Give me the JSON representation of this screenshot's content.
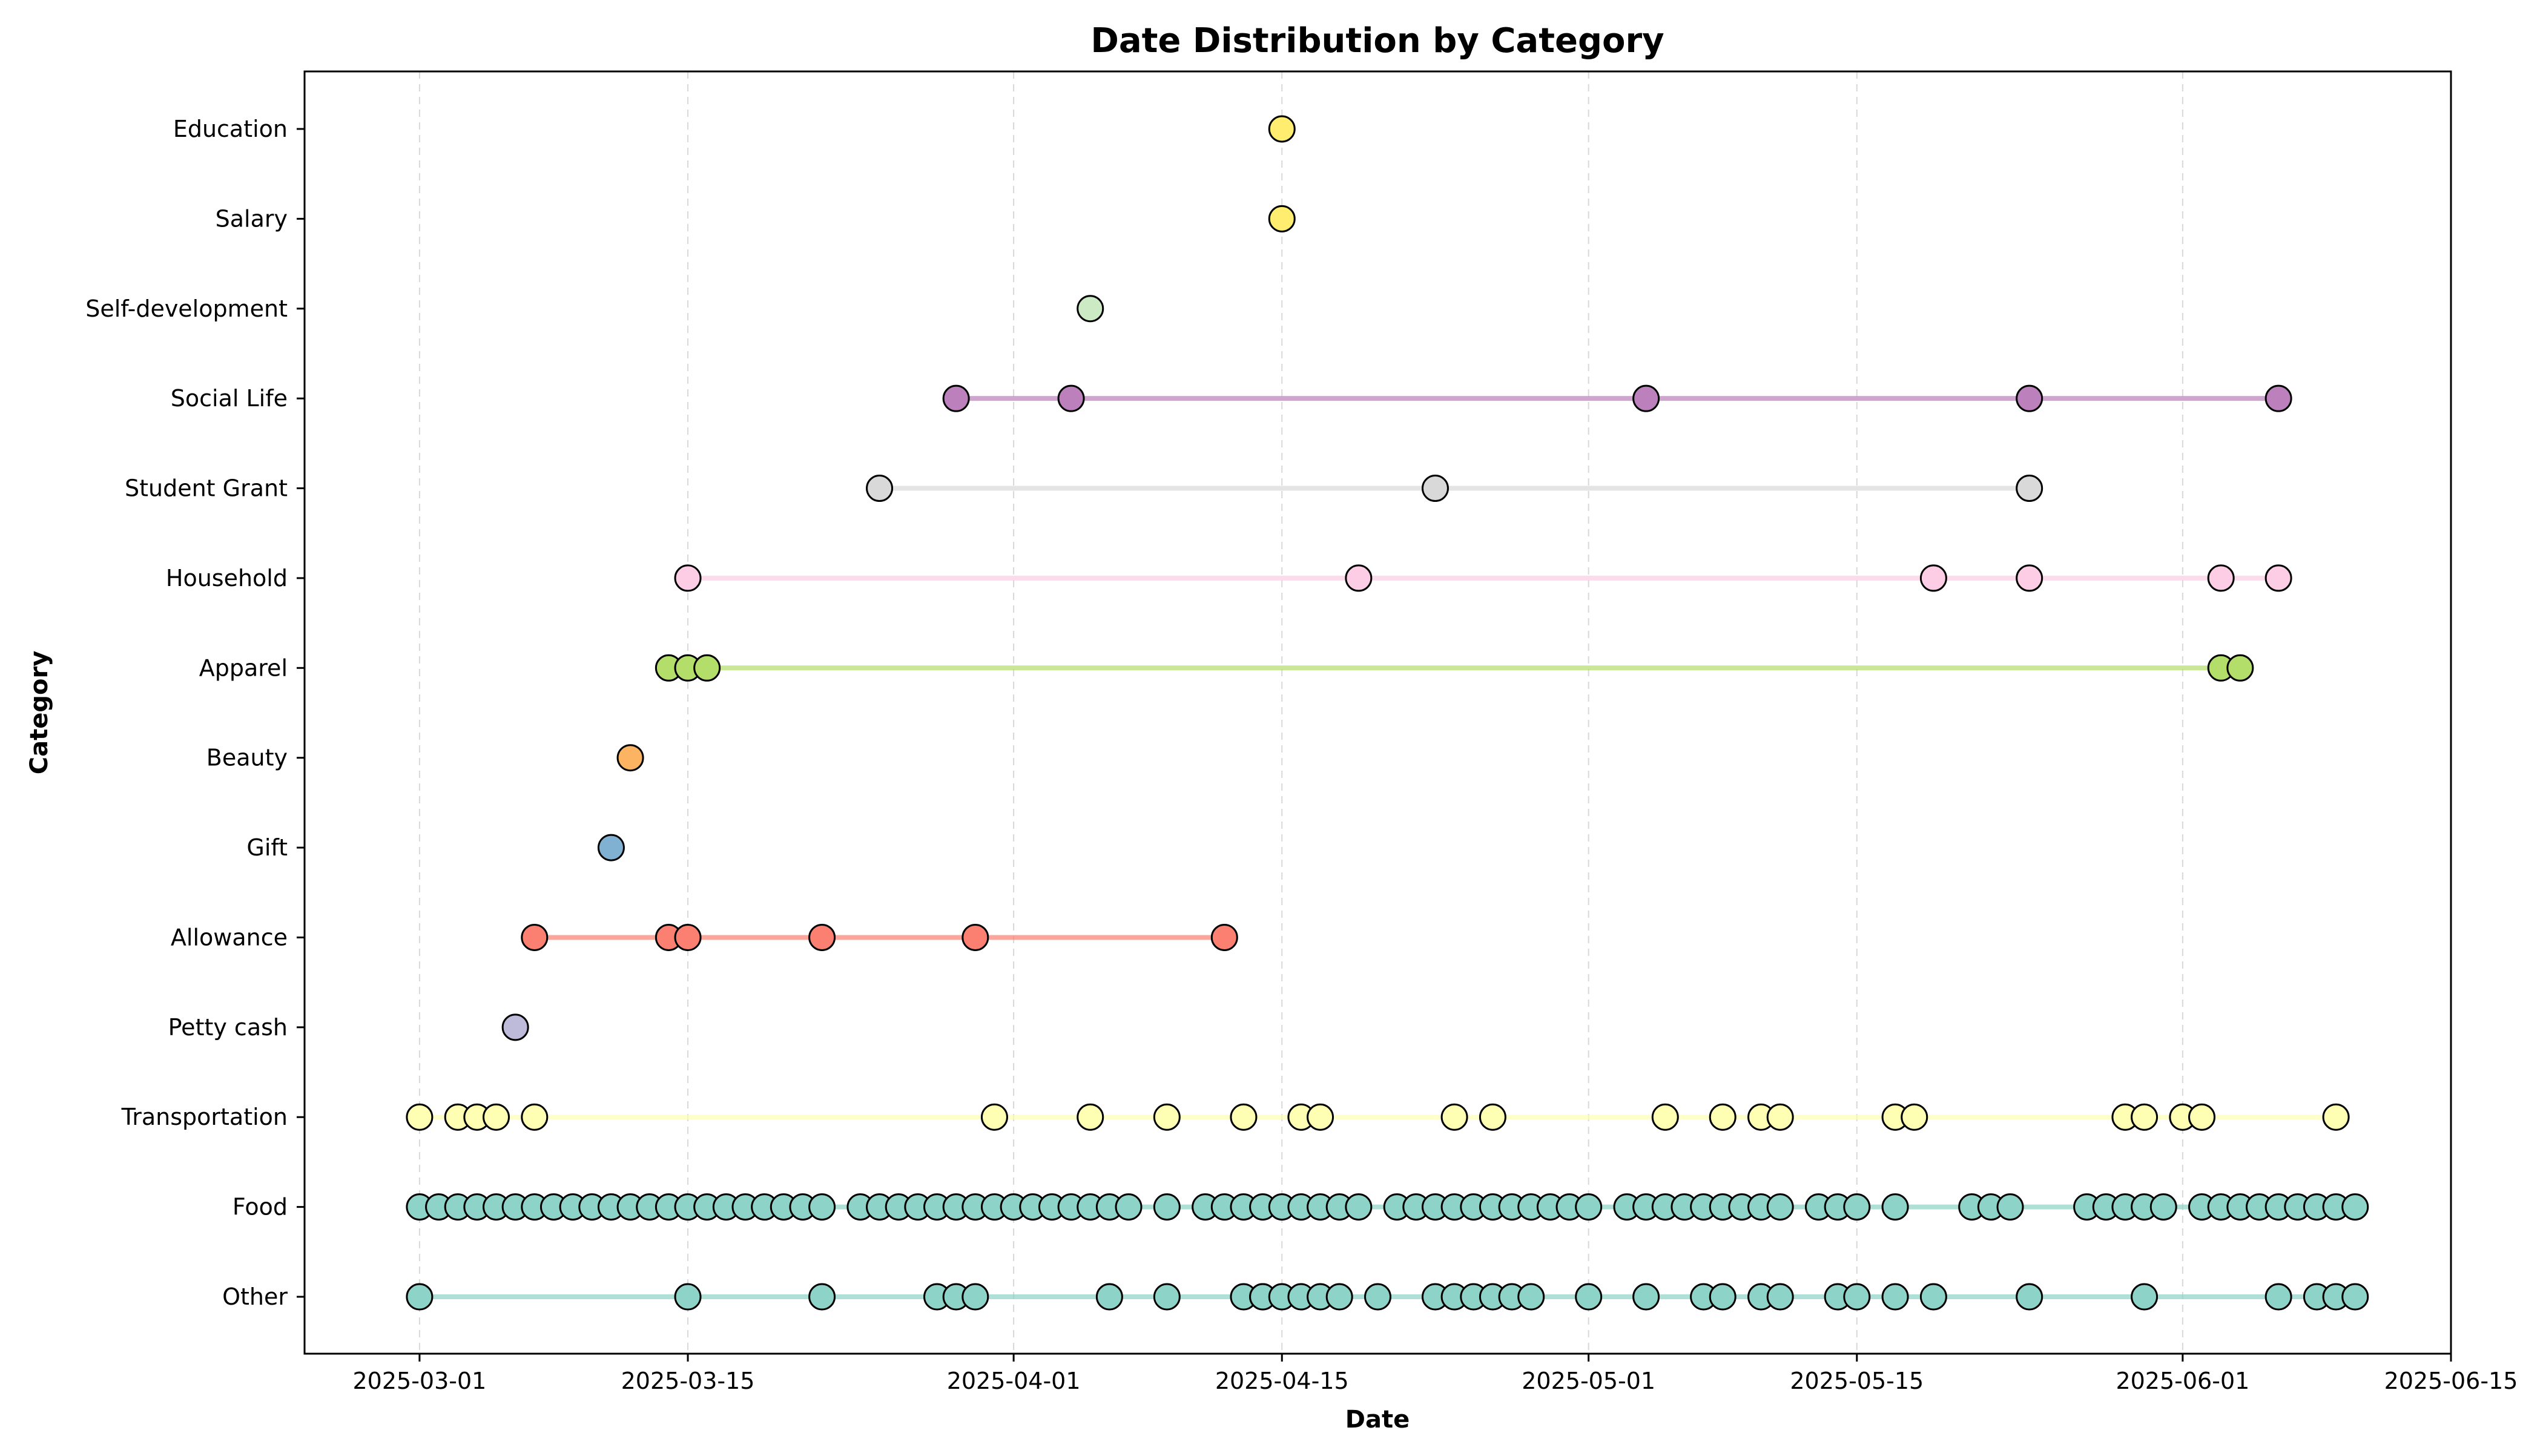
{
  "chart_data": {
    "type": "scatter",
    "title": "Date Distribution by Category",
    "xlabel": "Date",
    "ylabel": "Category",
    "x_is_date": true,
    "xlim": [
      "2025-02-23",
      "2025-06-15"
    ],
    "xticks": [
      "2025-03-01",
      "2025-03-15",
      "2025-04-01",
      "2025-04-15",
      "2025-05-01",
      "2025-05-15",
      "2025-06-01",
      "2025-06-15"
    ],
    "grid": "vertical dashed",
    "categories": [
      "Other",
      "Food",
      "Transportation",
      "Petty cash",
      "Allowance",
      "Gift",
      "Beauty",
      "Apparel",
      "Household",
      "Student Grant",
      "Social Life",
      "Self-development",
      "Salary",
      "Education"
    ],
    "series": [
      {
        "category": "Other",
        "color": "#8dd3c7",
        "dates": [
          "2025-03-01",
          "2025-03-15",
          "2025-03-22",
          "2025-03-28",
          "2025-03-29",
          "2025-03-30",
          "2025-04-06",
          "2025-04-09",
          "2025-04-13",
          "2025-04-14",
          "2025-04-14",
          "2025-04-15",
          "2025-04-16",
          "2025-04-17",
          "2025-04-18",
          "2025-04-20",
          "2025-04-23",
          "2025-04-24",
          "2025-04-25",
          "2025-04-26",
          "2025-04-27",
          "2025-04-28",
          "2025-05-01",
          "2025-05-04",
          "2025-05-07",
          "2025-05-08",
          "2025-05-10",
          "2025-05-11",
          "2025-05-14",
          "2025-05-15",
          "2025-05-17",
          "2025-05-19",
          "2025-05-24",
          "2025-05-30",
          "2025-06-06",
          "2025-06-08",
          "2025-06-09",
          "2025-06-10"
        ]
      },
      {
        "category": "Food",
        "color": "#8dd3c7",
        "dates": [
          "2025-03-01",
          "2025-03-02",
          "2025-03-03",
          "2025-03-04",
          "2025-03-05",
          "2025-03-06",
          "2025-03-07",
          "2025-03-08",
          "2025-03-09",
          "2025-03-10",
          "2025-03-11",
          "2025-03-12",
          "2025-03-13",
          "2025-03-14",
          "2025-03-15",
          "2025-03-16",
          "2025-03-17",
          "2025-03-18",
          "2025-03-19",
          "2025-03-20",
          "2025-03-21",
          "2025-03-22",
          "2025-03-24",
          "2025-03-25",
          "2025-03-26",
          "2025-03-27",
          "2025-03-28",
          "2025-03-29",
          "2025-03-30",
          "2025-03-31",
          "2025-04-01",
          "2025-04-02",
          "2025-04-03",
          "2025-04-04",
          "2025-04-05",
          "2025-04-06",
          "2025-04-07",
          "2025-04-09",
          "2025-04-11",
          "2025-04-12",
          "2025-04-13",
          "2025-04-14",
          "2025-04-15",
          "2025-04-16",
          "2025-04-17",
          "2025-04-18",
          "2025-04-19",
          "2025-04-21",
          "2025-04-22",
          "2025-04-23",
          "2025-04-24",
          "2025-04-25",
          "2025-04-26",
          "2025-04-27",
          "2025-04-28",
          "2025-04-29",
          "2025-04-30",
          "2025-05-01",
          "2025-05-03",
          "2025-05-04",
          "2025-05-05",
          "2025-05-06",
          "2025-05-07",
          "2025-05-08",
          "2025-05-09",
          "2025-05-10",
          "2025-05-11",
          "2025-05-13",
          "2025-05-14",
          "2025-05-15",
          "2025-05-17",
          "2025-05-21",
          "2025-05-22",
          "2025-05-23",
          "2025-05-27",
          "2025-05-28",
          "2025-05-29",
          "2025-05-30",
          "2025-05-31",
          "2025-06-02",
          "2025-06-03",
          "2025-06-04",
          "2025-06-05",
          "2025-06-06",
          "2025-06-07",
          "2025-06-08",
          "2025-06-09",
          "2025-06-10"
        ]
      },
      {
        "category": "Transportation",
        "color": "#ffffb3",
        "dates": [
          "2025-03-01",
          "2025-03-03",
          "2025-03-04",
          "2025-03-05",
          "2025-03-07",
          "2025-03-31",
          "2025-04-05",
          "2025-04-09",
          "2025-04-13",
          "2025-04-16",
          "2025-04-17",
          "2025-04-24",
          "2025-04-26",
          "2025-05-05",
          "2025-05-08",
          "2025-05-10",
          "2025-05-11",
          "2025-05-17",
          "2025-05-18",
          "2025-05-29",
          "2025-05-30",
          "2025-06-01",
          "2025-06-02",
          "2025-06-09"
        ]
      },
      {
        "category": "Petty cash",
        "color": "#bebada",
        "dates": [
          "2025-03-06"
        ]
      },
      {
        "category": "Allowance",
        "color": "#fb8072",
        "dates": [
          "2025-03-07",
          "2025-03-14",
          "2025-03-15",
          "2025-03-22",
          "2025-03-30",
          "2025-04-12"
        ]
      },
      {
        "category": "Gift",
        "color": "#80b1d3",
        "dates": [
          "2025-03-11"
        ]
      },
      {
        "category": "Beauty",
        "color": "#fdb462",
        "dates": [
          "2025-03-12"
        ]
      },
      {
        "category": "Apparel",
        "color": "#b3de69",
        "dates": [
          "2025-03-14",
          "2025-03-15",
          "2025-03-16",
          "2025-06-03",
          "2025-06-04"
        ]
      },
      {
        "category": "Household",
        "color": "#fccde5",
        "dates": [
          "2025-03-15",
          "2025-04-19",
          "2025-05-19",
          "2025-05-24",
          "2025-06-03",
          "2025-06-06"
        ]
      },
      {
        "category": "Student Grant",
        "color": "#d9d9d9",
        "dates": [
          "2025-03-25",
          "2025-04-23",
          "2025-05-24"
        ]
      },
      {
        "category": "Social Life",
        "color": "#bc80bd",
        "dates": [
          "2025-03-29",
          "2025-04-04",
          "2025-05-04",
          "2025-05-24",
          "2025-06-06"
        ]
      },
      {
        "category": "Self-development",
        "color": "#ccebc5",
        "dates": [
          "2025-04-05"
        ]
      },
      {
        "category": "Salary",
        "color": "#ffed6f",
        "dates": [
          "2025-04-15"
        ]
      },
      {
        "category": "Education",
        "color": "#ffed6f",
        "dates": [
          "2025-04-15"
        ]
      }
    ]
  }
}
